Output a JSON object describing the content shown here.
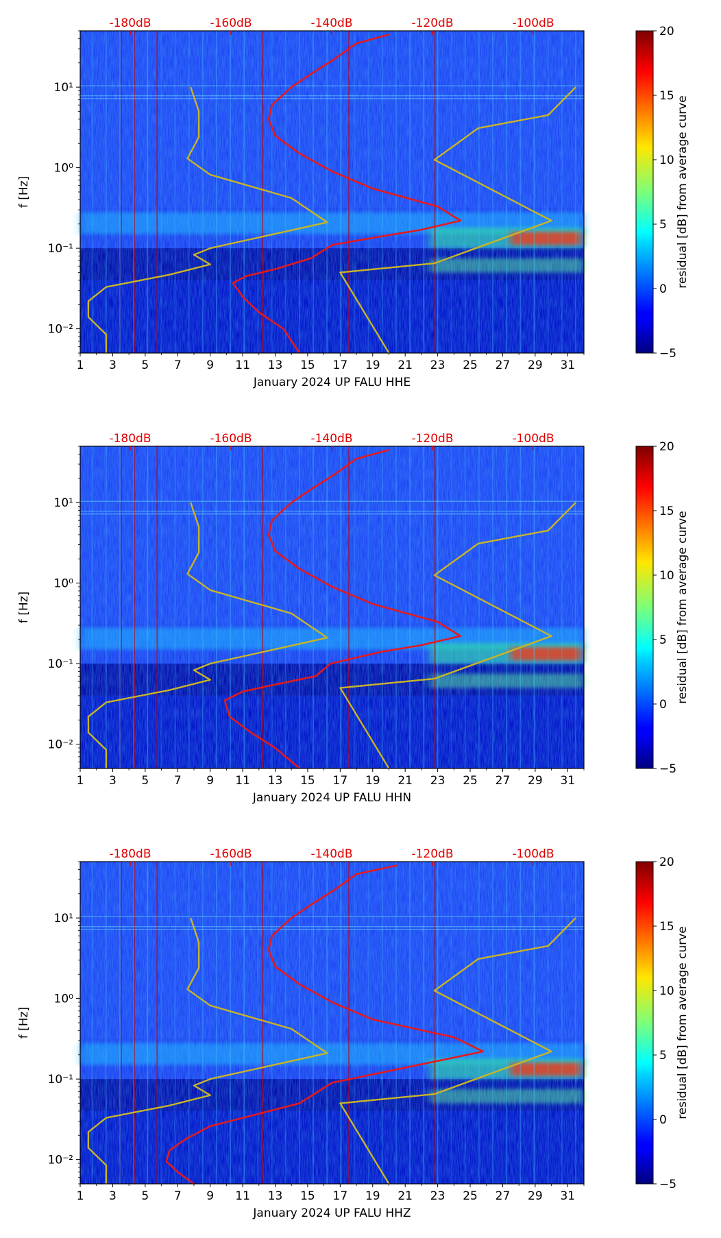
{
  "chart_data": [
    {
      "type": "heatmap",
      "xlabel": "January 2024 UP FALU  HHE",
      "ylabel": "f [Hz]",
      "x_ticks": [
        "1",
        "3",
        "5",
        "7",
        "9",
        "11",
        "13",
        "15",
        "17",
        "19",
        "21",
        "23",
        "25",
        "27",
        "29",
        "31"
      ],
      "x_range": [
        1,
        32
      ],
      "y_ticks": [
        "10⁻²",
        "10⁻¹",
        "10⁰",
        "10¹"
      ],
      "y_range": [
        0.005,
        50
      ],
      "y_scale": "log",
      "top_ticks": [
        "-180dB",
        "-160dB",
        "-140dB",
        "-120dB",
        "-100dB"
      ],
      "colorbar": {
        "label": "residual [dB] from average curve",
        "range": [
          -5,
          20
        ],
        "ticks": [
          "20",
          "15",
          "10",
          "5",
          "0",
          "−5"
        ]
      },
      "series": [
        {
          "color": "#e41a1c",
          "x": [
            14.5,
            13.5,
            12.0,
            11.0,
            10.4,
            11.2,
            13.0,
            15.2,
            16.5,
            19.5,
            22.0,
            24.4,
            23.0,
            19.0,
            16.5,
            14.5,
            13.0,
            12.6,
            12.8,
            14.0,
            15.3,
            16.6,
            18.0,
            20.0
          ],
          "y": [
            0.005,
            0.01,
            0.016,
            0.025,
            0.037,
            0.045,
            0.055,
            0.075,
            0.11,
            0.14,
            0.17,
            0.22,
            0.33,
            0.55,
            0.9,
            1.5,
            2.5,
            4.0,
            6.0,
            10.0,
            15.0,
            22.0,
            35.0,
            45.0
          ]
        },
        {
          "color": "#c8b428",
          "x": [
            2.6,
            2.6,
            1.5,
            1.5,
            2.6,
            6.5,
            9.0,
            8.0,
            9.0,
            16.2,
            14.0,
            9.0,
            7.6,
            8.3,
            8.3,
            7.8
          ],
          "y": [
            0.005,
            0.0085,
            0.014,
            0.022,
            0.033,
            0.047,
            0.063,
            0.083,
            0.1,
            0.21,
            0.42,
            0.82,
            1.3,
            2.4,
            5.0,
            10.0
          ]
        },
        {
          "color": "#c8b428",
          "x": [
            20.0,
            17.0,
            22.8,
            30.0,
            22.8,
            25.5,
            29.8,
            31.5
          ],
          "y": [
            0.005,
            0.05,
            0.065,
            0.22,
            1.25,
            3.1,
            4.5,
            10.0
          ]
        }
      ]
    },
    {
      "type": "heatmap",
      "xlabel": "January 2024 UP FALU  HHN",
      "ylabel": "f [Hz]",
      "x_ticks": [
        "1",
        "3",
        "5",
        "7",
        "9",
        "11",
        "13",
        "15",
        "17",
        "19",
        "21",
        "23",
        "25",
        "27",
        "29",
        "31"
      ],
      "x_range": [
        1,
        32
      ],
      "y_ticks": [
        "10⁻²",
        "10⁻¹",
        "10⁰",
        "10¹"
      ],
      "y_range": [
        0.005,
        50
      ],
      "y_scale": "log",
      "top_ticks": [
        "-180dB",
        "-160dB",
        "-140dB",
        "-120dB",
        "-100dB"
      ],
      "colorbar": {
        "label": "residual [dB] from average curve",
        "range": [
          -5,
          20
        ],
        "ticks": [
          "20",
          "15",
          "10",
          "5",
          "0",
          "−5"
        ]
      },
      "series": [
        {
          "color": "#e41a1c",
          "x": [
            14.5,
            13.0,
            11.5,
            10.2,
            9.9,
            11.0,
            13.0,
            15.5,
            16.4,
            19.5,
            22.0,
            24.4,
            23.0,
            19.0,
            16.5,
            14.5,
            13.0,
            12.6,
            12.8,
            14.0,
            15.3,
            16.6,
            18.0,
            20.0
          ],
          "y": [
            0.005,
            0.009,
            0.014,
            0.022,
            0.035,
            0.045,
            0.055,
            0.07,
            0.1,
            0.14,
            0.17,
            0.22,
            0.33,
            0.55,
            0.9,
            1.5,
            2.5,
            4.0,
            6.0,
            10.0,
            15.0,
            22.0,
            35.0,
            45.0
          ]
        },
        {
          "color": "#c8b428",
          "x": [
            2.6,
            2.6,
            1.5,
            1.5,
            2.6,
            6.5,
            9.0,
            8.0,
            9.0,
            16.2,
            14.0,
            9.0,
            7.6,
            8.3,
            8.3,
            7.8
          ],
          "y": [
            0.005,
            0.0085,
            0.014,
            0.022,
            0.033,
            0.047,
            0.063,
            0.083,
            0.1,
            0.21,
            0.42,
            0.82,
            1.3,
            2.4,
            5.0,
            10.0
          ]
        },
        {
          "color": "#c8b428",
          "x": [
            20.0,
            17.0,
            22.8,
            30.0,
            22.8,
            25.5,
            29.8,
            31.5
          ],
          "y": [
            0.005,
            0.05,
            0.065,
            0.22,
            1.25,
            3.1,
            4.5,
            10.0
          ]
        }
      ]
    },
    {
      "type": "heatmap",
      "xlabel": "January 2024 UP FALU  HHZ",
      "ylabel": "f [Hz]",
      "x_ticks": [
        "1",
        "3",
        "5",
        "7",
        "9",
        "11",
        "13",
        "15",
        "17",
        "19",
        "21",
        "23",
        "25",
        "27",
        "29",
        "31"
      ],
      "x_range": [
        1,
        32
      ],
      "y_ticks": [
        "10⁻²",
        "10⁻¹",
        "10⁰",
        "10¹"
      ],
      "y_range": [
        0.005,
        50
      ],
      "y_scale": "log",
      "top_ticks": [
        "-180dB",
        "-160dB",
        "-140dB",
        "-120dB",
        "-100dB"
      ],
      "colorbar": {
        "label": "residual [dB] from average curve",
        "range": [
          -5,
          20
        ],
        "ticks": [
          "20",
          "15",
          "10",
          "5",
          "0",
          "−5"
        ]
      },
      "series": [
        {
          "color": "#e41a1c",
          "x": [
            8.0,
            7.0,
            6.3,
            6.5,
            7.5,
            9.0,
            11.5,
            14.5,
            16.5,
            19.5,
            22.5,
            25.8,
            24.0,
            19.0,
            16.5,
            14.5,
            13.0,
            12.6,
            12.8,
            14.0,
            15.3,
            16.6,
            18.0,
            20.5
          ],
          "y": [
            0.005,
            0.007,
            0.0095,
            0.013,
            0.018,
            0.026,
            0.035,
            0.05,
            0.09,
            0.12,
            0.16,
            0.22,
            0.33,
            0.55,
            0.9,
            1.5,
            2.5,
            4.0,
            6.0,
            10.0,
            15.0,
            22.0,
            35.0,
            45.0
          ]
        },
        {
          "color": "#c8b428",
          "x": [
            2.6,
            2.6,
            1.5,
            1.5,
            2.6,
            6.5,
            9.0,
            8.0,
            9.0,
            16.2,
            14.0,
            9.0,
            7.6,
            8.3,
            8.3,
            7.8
          ],
          "y": [
            0.005,
            0.0085,
            0.014,
            0.022,
            0.033,
            0.047,
            0.063,
            0.083,
            0.1,
            0.21,
            0.42,
            0.82,
            1.3,
            2.4,
            5.0,
            10.0
          ]
        },
        {
          "color": "#c8b428",
          "x": [
            20.0,
            17.0,
            22.8,
            30.0,
            22.8,
            25.5,
            29.8,
            31.5
          ],
          "y": [
            0.005,
            0.05,
            0.065,
            0.22,
            1.25,
            3.1,
            4.5,
            10.0
          ]
        }
      ]
    }
  ]
}
